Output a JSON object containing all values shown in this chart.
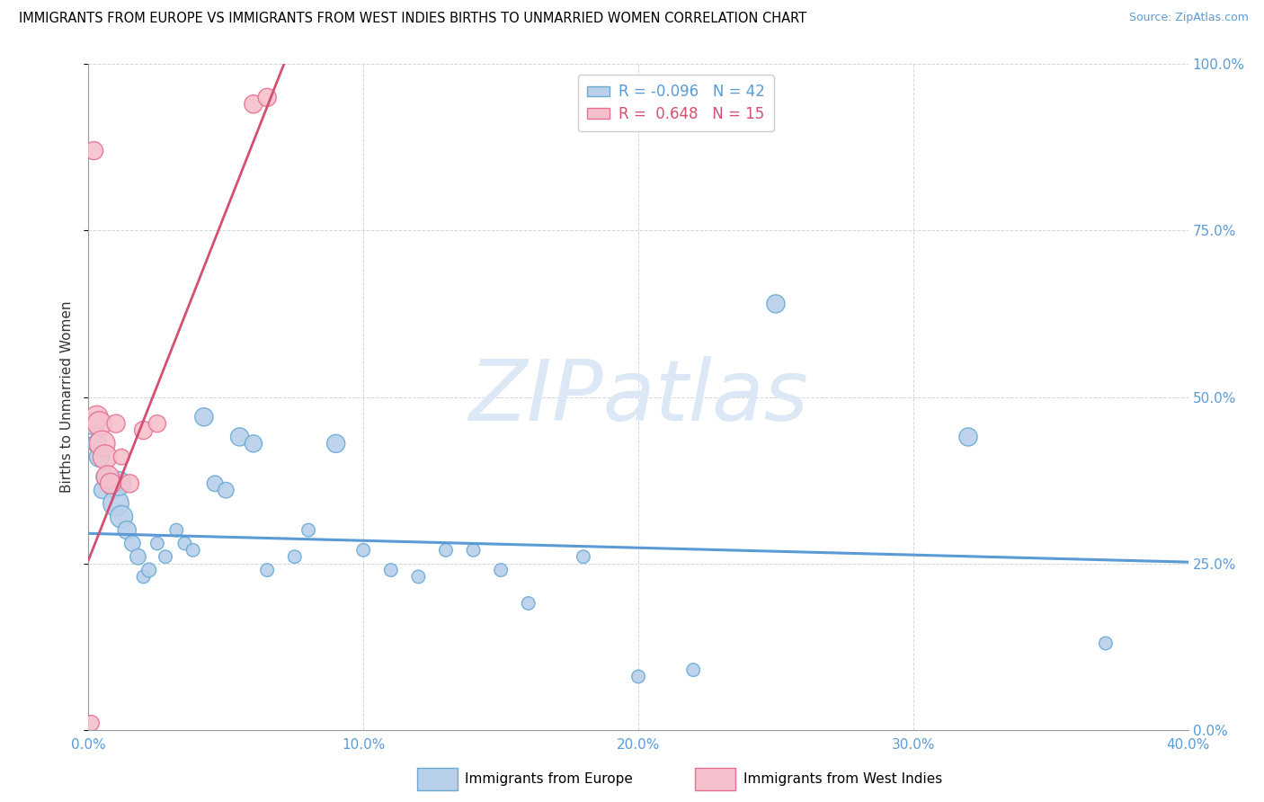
{
  "title": "IMMIGRANTS FROM EUROPE VS IMMIGRANTS FROM WEST INDIES BIRTHS TO UNMARRIED WOMEN CORRELATION CHART",
  "source": "Source: ZipAtlas.com",
  "ylabel": "Births to Unmarried Women",
  "xlim": [
    0.0,
    0.4
  ],
  "ylim": [
    0.0,
    1.0
  ],
  "xticks": [
    0.0,
    0.1,
    0.2,
    0.3,
    0.4
  ],
  "yticks": [
    0.0,
    0.25,
    0.5,
    0.75,
    1.0
  ],
  "blue_R": -0.096,
  "blue_N": 42,
  "pink_R": 0.648,
  "pink_N": 15,
  "blue_color": "#b8d0ea",
  "pink_color": "#f5c0cc",
  "blue_edge_color": "#6aaad4",
  "pink_edge_color": "#e87090",
  "blue_line_color": "#5b9bd5",
  "pink_line_color": "#d45070",
  "watermark": "ZIPatlas",
  "watermark_color": "#dce8f5",
  "legend_label_blue": "Immigrants from Europe",
  "legend_label_pink": "Immigrants from West Indies",
  "blue_points_x": [
    0.002,
    0.003,
    0.004,
    0.005,
    0.006,
    0.008,
    0.009,
    0.01,
    0.011,
    0.012,
    0.014,
    0.016,
    0.018,
    0.02,
    0.022,
    0.025,
    0.028,
    0.032,
    0.035,
    0.038,
    0.042,
    0.046,
    0.05,
    0.055,
    0.06,
    0.065,
    0.075,
    0.08,
    0.09,
    0.1,
    0.11,
    0.12,
    0.13,
    0.14,
    0.15,
    0.16,
    0.18,
    0.2,
    0.22,
    0.25,
    0.32,
    0.37
  ],
  "blue_points_y": [
    0.46,
    0.43,
    0.41,
    0.36,
    0.38,
    0.37,
    0.36,
    0.34,
    0.37,
    0.32,
    0.3,
    0.28,
    0.26,
    0.23,
    0.24,
    0.28,
    0.26,
    0.3,
    0.28,
    0.27,
    0.47,
    0.37,
    0.36,
    0.44,
    0.43,
    0.24,
    0.26,
    0.3,
    0.43,
    0.27,
    0.24,
    0.23,
    0.27,
    0.27,
    0.24,
    0.19,
    0.26,
    0.08,
    0.09,
    0.64,
    0.44,
    0.13
  ],
  "blue_sizes": [
    320,
    220,
    260,
    180,
    200,
    160,
    160,
    420,
    370,
    320,
    210,
    160,
    160,
    110,
    130,
    110,
    110,
    110,
    110,
    110,
    210,
    160,
    160,
    210,
    190,
    110,
    110,
    110,
    210,
    110,
    110,
    110,
    110,
    110,
    110,
    110,
    110,
    110,
    110,
    210,
    210,
    110
  ],
  "pink_points_x": [
    0.001,
    0.002,
    0.003,
    0.004,
    0.005,
    0.006,
    0.007,
    0.008,
    0.01,
    0.012,
    0.015,
    0.02,
    0.025,
    0.06,
    0.065
  ],
  "pink_points_y": [
    0.01,
    0.87,
    0.47,
    0.46,
    0.43,
    0.41,
    0.38,
    0.37,
    0.46,
    0.41,
    0.37,
    0.45,
    0.46,
    0.94,
    0.95
  ],
  "pink_sizes": [
    160,
    210,
    320,
    370,
    420,
    370,
    320,
    270,
    210,
    160,
    210,
    210,
    190,
    210,
    210
  ],
  "blue_trend_x": [
    0.0,
    0.4
  ],
  "blue_trend_y": [
    0.295,
    0.252
  ],
  "pink_trend_x": [
    0.0,
    0.073
  ],
  "pink_trend_y": [
    0.255,
    1.02
  ]
}
